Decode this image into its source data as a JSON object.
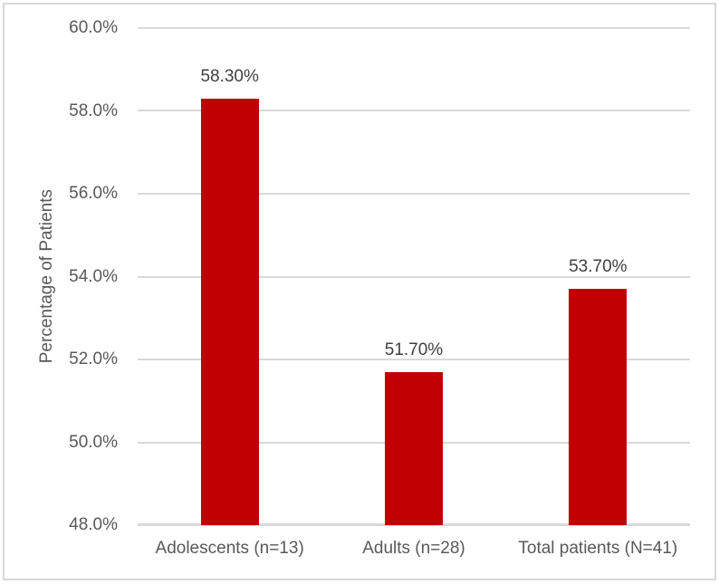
{
  "chart_data": {
    "type": "bar",
    "title": "",
    "xlabel": "",
    "ylabel": "Percentage of Patients",
    "categories": [
      "Adolescents (n=13)",
      "Adults (n=28)",
      "Total patients (N=41)"
    ],
    "values": [
      58.3,
      51.7,
      53.7
    ],
    "data_labels": [
      "58.30%",
      "51.70%",
      "53.70%"
    ],
    "ylim": [
      48,
      60
    ],
    "yticks": [
      {
        "value": 60,
        "label": "60.0%"
      },
      {
        "value": 58,
        "label": "58.0%"
      },
      {
        "value": 56,
        "label": "56.0%"
      },
      {
        "value": 54,
        "label": "54.0%"
      },
      {
        "value": 52,
        "label": "52.0%"
      },
      {
        "value": 50,
        "label": "50.0%"
      },
      {
        "value": 48,
        "label": "48.0%"
      }
    ],
    "grid": true,
    "legend": "none",
    "colors": {
      "bar": "#C00000",
      "gridline": "#D9D9D9",
      "axis_line": "#D9D9D9",
      "tick_text": "#595959",
      "category_text": "#595959",
      "data_label_text": "#404040",
      "frame_border": "#D9D9D9",
      "background": "#FFFFFF"
    }
  }
}
